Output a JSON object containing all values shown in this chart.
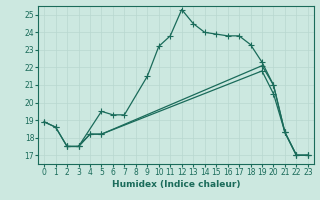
{
  "xlabel": "Humidex (Indice chaleur)",
  "background_color": "#cce8e0",
  "line_color": "#1a6b5a",
  "grid_color": "#b8d8d0",
  "xlim": [
    -0.5,
    23.5
  ],
  "ylim": [
    16.5,
    25.5
  ],
  "xticks": [
    0,
    1,
    2,
    3,
    4,
    5,
    6,
    7,
    8,
    9,
    10,
    11,
    12,
    13,
    14,
    15,
    16,
    17,
    18,
    19,
    20,
    21,
    22,
    23
  ],
  "yticks": [
    17,
    18,
    19,
    20,
    21,
    22,
    23,
    24,
    25
  ],
  "line1_x": [
    0,
    1,
    2,
    3,
    5,
    6,
    7,
    9,
    10,
    11,
    12,
    13,
    14,
    15,
    16,
    17,
    18,
    19,
    20,
    21,
    22,
    23
  ],
  "line1_y": [
    18.9,
    18.6,
    17.5,
    17.5,
    19.5,
    19.3,
    19.3,
    21.5,
    23.2,
    23.8,
    25.3,
    24.5,
    24.0,
    23.9,
    23.8,
    23.8,
    23.3,
    22.3,
    21.0,
    18.3,
    17.0,
    17.0
  ],
  "line2_x": [
    0,
    1,
    2,
    3,
    4,
    5,
    19,
    20,
    21,
    22,
    23
  ],
  "line2_y": [
    18.9,
    18.6,
    17.5,
    17.5,
    18.2,
    18.2,
    21.8,
    20.5,
    18.3,
    17.0,
    17.0
  ],
  "line3_x": [
    2,
    3,
    4,
    5,
    19,
    20,
    21,
    22,
    23
  ],
  "line3_y": [
    17.5,
    17.5,
    18.2,
    18.2,
    22.1,
    21.0,
    18.3,
    17.0,
    17.0
  ]
}
